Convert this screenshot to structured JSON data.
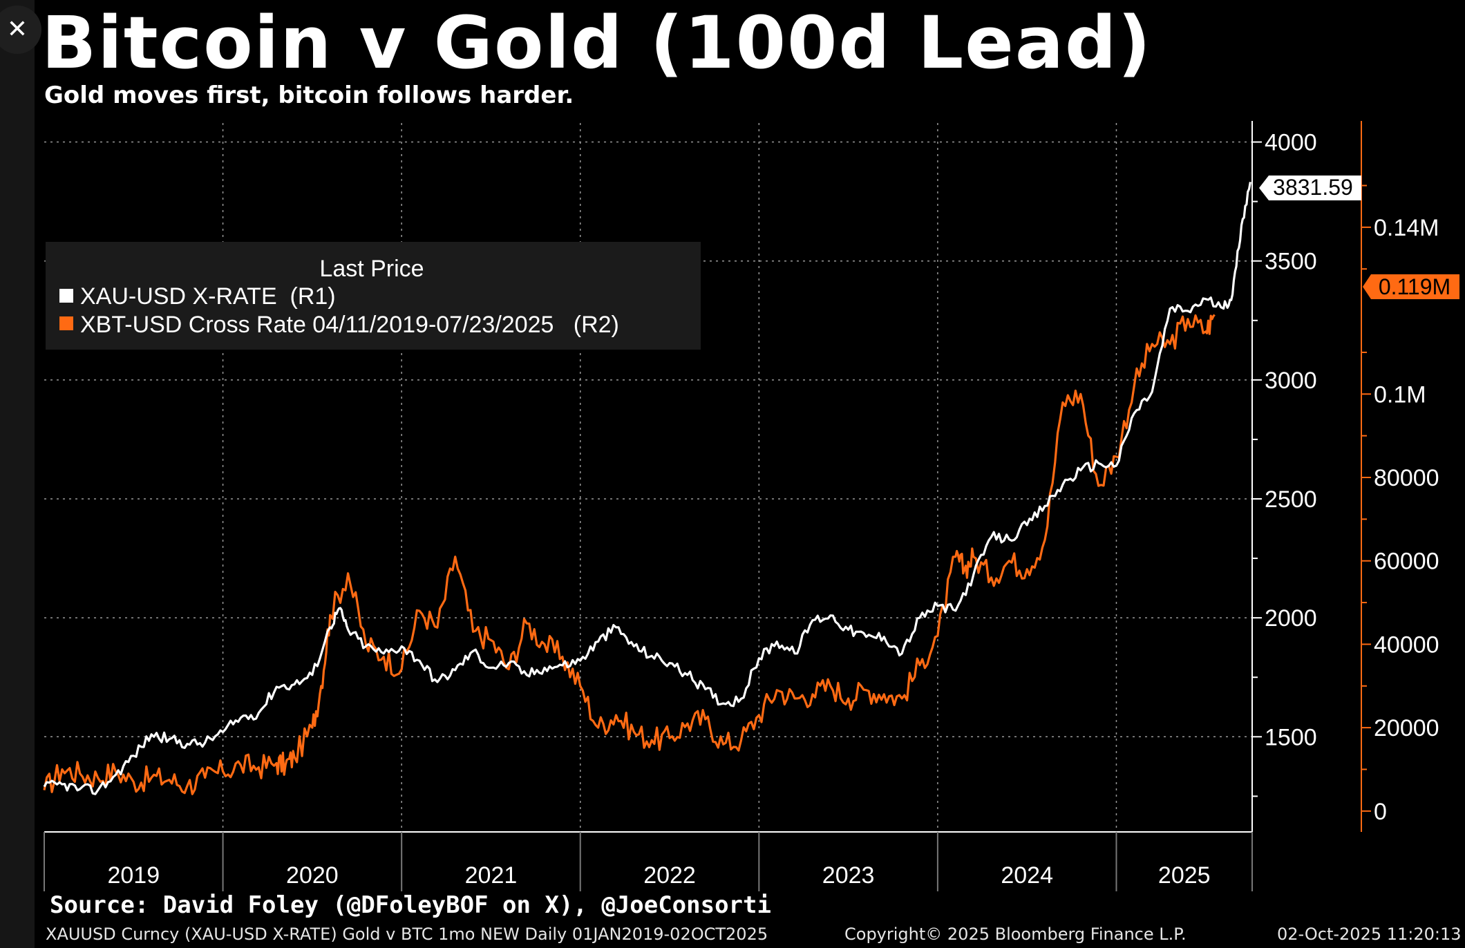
{
  "window": {
    "close_icon": "close-icon",
    "close_glyph": "✕"
  },
  "header": {
    "title": "Bitcoin v Gold (100d Lead)",
    "subtitle": "Gold moves first, bitcoin follows harder."
  },
  "colors": {
    "gold_series": "#ffffff",
    "btc_series": "#ff6a13",
    "background": "#000000",
    "grid": "#888888"
  },
  "chart_data": {
    "type": "line",
    "title": "Bitcoin v Gold (100d Lead)",
    "subtitle": "Gold moves first, bitcoin follows harder.",
    "legend": {
      "title": "Last Price",
      "position": "top-left",
      "entries": [
        {
          "label": "XAU-USD X-RATE  (R1)",
          "color": "#ffffff"
        },
        {
          "label": "XBT-USD Cross Rate 04/11/2019-07/23/2025   (R2)",
          "color": "#ff6a13"
        }
      ]
    },
    "x_axis": {
      "range": [
        2019.0,
        2025.76
      ],
      "tick_labels": [
        "2019",
        "2020",
        "2021",
        "2022",
        "2023",
        "2024",
        "2025"
      ],
      "year_boundaries": [
        2020,
        2021,
        2022,
        2023,
        2024,
        2025
      ]
    },
    "y_axis_r1": {
      "range": [
        1100,
        4080
      ],
      "ticks": [
        1500,
        2000,
        2500,
        3000,
        3500,
        4000
      ],
      "tick_labels": [
        "1500",
        "2000",
        "2500",
        "3000",
        "3500",
        "4000"
      ]
    },
    "y_axis_r2": {
      "range": [
        -5000,
        165000
      ],
      "ticks": [
        0,
        20000,
        40000,
        60000,
        80000,
        100000,
        140000
      ],
      "tick_labels": [
        "0",
        "20000",
        "40000",
        "60000",
        "80000",
        "0.1M",
        "0.14M"
      ]
    },
    "last_value_labels": {
      "r1": "3831.59",
      "r2": "0.119M"
    },
    "series": [
      {
        "name": "XAU-USD X-RATE",
        "axis": "R1",
        "x": [
          2019.0,
          2019.1,
          2019.2,
          2019.3,
          2019.4,
          2019.5,
          2019.6,
          2019.7,
          2019.8,
          2019.9,
          2020.0,
          2020.1,
          2020.2,
          2020.3,
          2020.4,
          2020.5,
          2020.6,
          2020.65,
          2020.7,
          2020.8,
          2020.9,
          2021.0,
          2021.1,
          2021.2,
          2021.3,
          2021.4,
          2021.5,
          2021.6,
          2021.7,
          2021.8,
          2021.9,
          2022.0,
          2022.1,
          2022.2,
          2022.3,
          2022.4,
          2022.5,
          2022.6,
          2022.7,
          2022.8,
          2022.9,
          2023.0,
          2023.1,
          2023.2,
          2023.3,
          2023.4,
          2023.5,
          2023.6,
          2023.7,
          2023.8,
          2023.9,
          2024.0,
          2024.1,
          2024.2,
          2024.3,
          2024.4,
          2024.5,
          2024.6,
          2024.7,
          2024.8,
          2024.9,
          2025.0,
          2025.1,
          2025.2,
          2025.3,
          2025.4,
          2025.5,
          2025.6,
          2025.65,
          2025.7,
          2025.75
        ],
        "values": [
          1290,
          1300,
          1280,
          1275,
          1340,
          1420,
          1510,
          1490,
          1470,
          1475,
          1520,
          1580,
          1600,
          1710,
          1720,
          1760,
          1960,
          2040,
          1950,
          1880,
          1850,
          1880,
          1820,
          1730,
          1780,
          1860,
          1790,
          1810,
          1760,
          1790,
          1800,
          1820,
          1900,
          1960,
          1880,
          1840,
          1810,
          1760,
          1700,
          1640,
          1660,
          1830,
          1900,
          1850,
          1990,
          2010,
          1950,
          1920,
          1920,
          1850,
          2000,
          2050,
          2030,
          2180,
          2340,
          2330,
          2390,
          2470,
          2560,
          2620,
          2650,
          2640,
          2860,
          2950,
          3300,
          3290,
          3340,
          3300,
          3360,
          3650,
          3832
        ]
      },
      {
        "name": "XBT-USD Cross Rate 04/11/2019-07/23/2025",
        "axis": "R2",
        "x": [
          2019.0,
          2019.1,
          2019.2,
          2019.3,
          2019.4,
          2019.5,
          2019.6,
          2019.7,
          2019.8,
          2019.9,
          2020.0,
          2020.1,
          2020.2,
          2020.3,
          2020.35,
          2020.4,
          2020.5,
          2020.55,
          2020.6,
          2020.7,
          2020.8,
          2020.9,
          2021.0,
          2021.1,
          2021.2,
          2021.3,
          2021.4,
          2021.5,
          2021.6,
          2021.7,
          2021.8,
          2021.9,
          2022.0,
          2022.1,
          2022.2,
          2022.3,
          2022.4,
          2022.5,
          2022.6,
          2022.7,
          2022.8,
          2022.9,
          2023.0,
          2023.1,
          2023.2,
          2023.3,
          2023.4,
          2023.5,
          2023.6,
          2023.7,
          2023.8,
          2023.9,
          2024.0,
          2024.1,
          2024.15,
          2024.2,
          2024.3,
          2024.4,
          2024.5,
          2024.6,
          2024.7,
          2024.8,
          2024.9,
          2025.0,
          2025.1,
          2025.2,
          2025.3,
          2025.4,
          2025.5,
          2025.55
        ],
        "values": [
          5000,
          10000,
          9000,
          8000,
          9500,
          7000,
          8000,
          7500,
          6000,
          8000,
          9500,
          11000,
          10500,
          11500,
          11000,
          13000,
          20000,
          30000,
          47000,
          57000,
          40000,
          37000,
          34000,
          48000,
          44000,
          61000,
          43000,
          41000,
          34000,
          45000,
          40000,
          37000,
          30000,
          20000,
          23000,
          19000,
          17000,
          17500,
          21000,
          22000,
          16000,
          17000,
          23000,
          29000,
          27000,
          28000,
          30000,
          27000,
          29000,
          28000,
          27000,
          35000,
          42000,
          61000,
          58000,
          61000,
          56000,
          60000,
          58000,
          65000,
          98000,
          100000,
          78000,
          85000,
          102000,
          112000,
          112000,
          118000,
          115000,
          119000
        ]
      }
    ]
  },
  "footer": {
    "source": "Source: David Foley (@DFoleyBOF on X), @JoeConsorti",
    "ticker_line": "XAUUSD Curncy (XAU-USD X-RATE) Gold v BTC 1mo NEW Daily 01JAN2019-02OCT2025",
    "copyright": "Copyright© 2025 Bloomberg Finance L.P.",
    "timestamp": "02-Oct-2025 11:20:13"
  }
}
